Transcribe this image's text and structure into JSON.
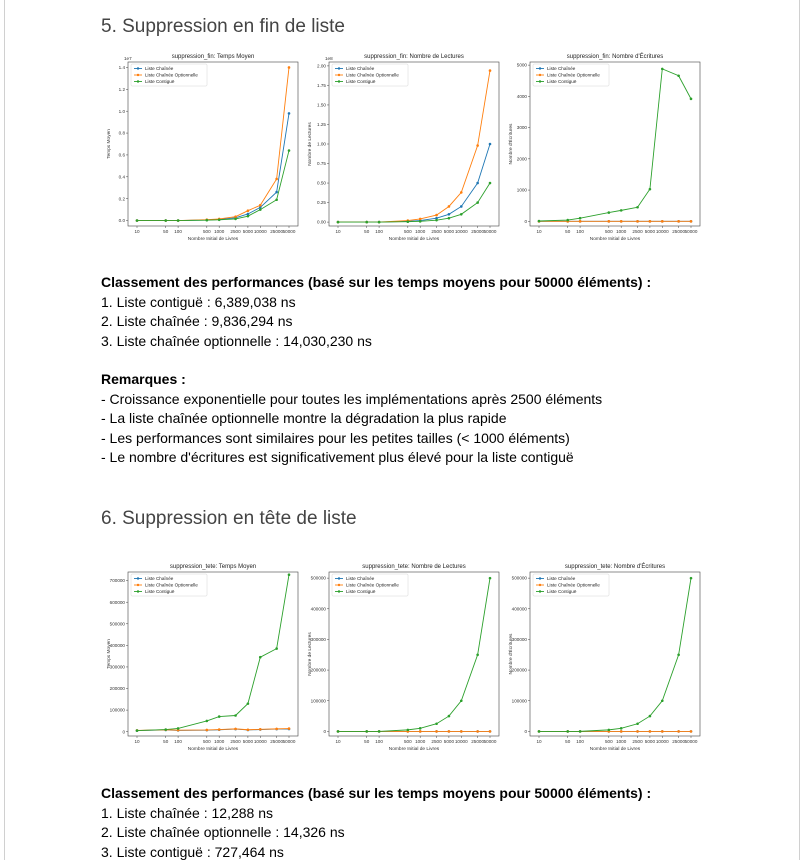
{
  "sections": [
    {
      "title": "5. Suppression en fin de liste",
      "ranking_title": "Classement des performances (basé sur les temps moyens pour 50000 éléments) :",
      "ranking": [
        "1. Liste contiguë : 6,389,038 ns",
        "2. Liste chaînée : 9,836,294 ns",
        "3. Liste chaînée optionnelle : 14,030,230 ns"
      ],
      "remarks_title": "Remarques :",
      "remarks": [
        "- Croissance exponentielle pour toutes les implémentations après 2500 éléments",
        "- La liste chaînée optionnelle montre la dégradation la plus rapide",
        "- Les performances sont similaires pour les petites tailles (< 1000 éléments)",
        "- Le nombre d'écritures est significativement plus élevé pour la liste contiguë"
      ]
    },
    {
      "title": "6. Suppression en tête de liste",
      "ranking_title": "Classement des performances (basé sur les temps moyens pour 50000 éléments) :",
      "ranking": [
        "1. Liste chaînée : 12,288 ns",
        "2. Liste chaînée optionnelle : 14,326 ns",
        "3. Liste contiguë : 727,464 ns"
      ]
    }
  ],
  "chart_data": [
    {
      "type": "line",
      "title": "suppression_fin: Temps Moyen",
      "xlabel": "Nombre Initial de Livres",
      "ylabel": "Temps Moyen",
      "y_multiplier_label": "1e7",
      "x": [
        "10",
        "50",
        "100",
        "500",
        "1000",
        "2500",
        "5000",
        "10000",
        "25000",
        "50000"
      ],
      "ylim": [
        -0.05,
        1.45
      ],
      "yticks": [
        "0.0",
        "0.2",
        "0.4",
        "0.6",
        "0.8",
        "1.0",
        "1.2",
        "1.4"
      ],
      "ytick_values": [
        0.0,
        0.2,
        0.4,
        0.6,
        0.8,
        1.0,
        1.2,
        1.4
      ],
      "legend": "top-left",
      "series": [
        {
          "name": "Liste Chaînée",
          "color": "#1f77b4",
          "values": [
            0,
            0,
            0,
            0.005,
            0.01,
            0.025,
            0.06,
            0.12,
            0.26,
            0.98
          ]
        },
        {
          "name": "Liste Chaînée Optionnelle",
          "color": "#ff7f0e",
          "values": [
            0,
            0,
            0,
            0.008,
            0.015,
            0.035,
            0.09,
            0.14,
            0.38,
            1.4
          ]
        },
        {
          "name": "Liste Contiguë",
          "color": "#2ca02c",
          "values": [
            0,
            0,
            0,
            0.003,
            0.007,
            0.015,
            0.04,
            0.1,
            0.19,
            0.64
          ]
        }
      ]
    },
    {
      "type": "line",
      "title": "suppression_fin: Nombre de Lectures",
      "xlabel": "Nombre Initial de Livres",
      "ylabel": "Nombre de Lectures",
      "y_multiplier_label": "1e8",
      "x": [
        "10",
        "50",
        "100",
        "500",
        "1000",
        "2500",
        "5000",
        "10000",
        "25000",
        "50000"
      ],
      "ylim": [
        -0.05,
        2.05
      ],
      "yticks": [
        "0.00",
        "0.25",
        "0.50",
        "0.75",
        "1.00",
        "1.25",
        "1.50",
        "1.75",
        "2.00"
      ],
      "ytick_values": [
        0,
        0.25,
        0.5,
        0.75,
        1.0,
        1.25,
        1.5,
        1.75,
        2.0
      ],
      "legend": "top-left",
      "series": [
        {
          "name": "Liste Chaînée",
          "color": "#1f77b4",
          "values": [
            0,
            0,
            0,
            0.01,
            0.02,
            0.05,
            0.1,
            0.2,
            0.5,
            1.0
          ]
        },
        {
          "name": "Liste Chaînée Optionnelle",
          "color": "#ff7f0e",
          "values": [
            0,
            0,
            0,
            0.02,
            0.04,
            0.09,
            0.2,
            0.38,
            0.98,
            1.94
          ]
        },
        {
          "name": "Liste Contiguë",
          "color": "#2ca02c",
          "values": [
            0,
            0,
            0,
            0.005,
            0.01,
            0.025,
            0.05,
            0.1,
            0.25,
            0.5
          ]
        }
      ]
    },
    {
      "type": "line",
      "title": "suppression_fin: Nombre d'Écritures",
      "xlabel": "Nombre Initial de Livres",
      "ylabel": "Nombre d'Écritures",
      "x": [
        "10",
        "50",
        "100",
        "500",
        "1000",
        "2500",
        "5000",
        "10000",
        "25000",
        "50000"
      ],
      "ylim": [
        -150,
        5100
      ],
      "yticks": [
        "0",
        "1000",
        "2000",
        "3000",
        "4000",
        "5000"
      ],
      "ytick_values": [
        0,
        1000,
        2000,
        3000,
        4000,
        5000
      ],
      "legend": "top-left",
      "series": [
        {
          "name": "Liste Chaînée",
          "color": "#1f77b4",
          "values": [
            0,
            0,
            0,
            0,
            0,
            0,
            0,
            0,
            0,
            0
          ]
        },
        {
          "name": "Liste Chaînée Optionnelle",
          "color": "#ff7f0e",
          "values": [
            0,
            0,
            0,
            0,
            0,
            0,
            0,
            0,
            0,
            0
          ]
        },
        {
          "name": "Liste Contiguë",
          "color": "#2ca02c",
          "values": [
            10,
            40,
            100,
            280,
            350,
            450,
            1030,
            4880,
            4660,
            3920
          ]
        }
      ]
    },
    {
      "type": "line",
      "title": "suppression_tete: Temps Moyen",
      "xlabel": "Nombre Initial de Livres",
      "ylabel": "Temps Moyen",
      "x": [
        "10",
        "50",
        "100",
        "500",
        "1000",
        "2500",
        "5000",
        "10000",
        "25000",
        "50000"
      ],
      "ylim": [
        -20000,
        740000
      ],
      "yticks": [
        "0",
        "100000",
        "200000",
        "300000",
        "400000",
        "500000",
        "600000",
        "700000"
      ],
      "ytick_values": [
        0,
        100000,
        200000,
        300000,
        400000,
        500000,
        600000,
        700000
      ],
      "legend": "top-left",
      "series": [
        {
          "name": "Liste Chaînée",
          "color": "#1f77b4",
          "values": [
            5000,
            8000,
            6000,
            7000,
            9000,
            12000,
            8000,
            10000,
            12000,
            12288
          ]
        },
        {
          "name": "Liste Chaînée Optionnelle",
          "color": "#ff7f0e",
          "values": [
            6000,
            9000,
            7000,
            8000,
            10000,
            13000,
            9000,
            11000,
            13000,
            14326
          ]
        },
        {
          "name": "Liste Contiguë",
          "color": "#2ca02c",
          "values": [
            5000,
            10000,
            15000,
            50000,
            70000,
            75000,
            130000,
            345000,
            385000,
            727464
          ]
        }
      ]
    },
    {
      "type": "line",
      "title": "suppression_tete: Nombre de Lectures",
      "xlabel": "Nombre Initial de Livres",
      "ylabel": "Nombre de Lectures",
      "x": [
        "10",
        "50",
        "100",
        "500",
        "1000",
        "2500",
        "5000",
        "10000",
        "25000",
        "50000"
      ],
      "ylim": [
        -15000,
        520000
      ],
      "yticks": [
        "0",
        "100000",
        "200000",
        "300000",
        "400000",
        "500000"
      ],
      "ytick_values": [
        0,
        100000,
        200000,
        300000,
        400000,
        500000
      ],
      "legend": "top-left",
      "series": [
        {
          "name": "Liste Chaînée",
          "color": "#1f77b4",
          "values": [
            0,
            0,
            0,
            0,
            0,
            0,
            0,
            0,
            0,
            0
          ]
        },
        {
          "name": "Liste Chaînée Optionnelle",
          "color": "#ff7f0e",
          "values": [
            0,
            0,
            0,
            0,
            0,
            0,
            0,
            0,
            0,
            0
          ]
        },
        {
          "name": "Liste Contiguë",
          "color": "#2ca02c",
          "values": [
            10,
            50,
            100,
            5000,
            10000,
            25000,
            50000,
            100000,
            250000,
            500000
          ]
        }
      ]
    },
    {
      "type": "line",
      "title": "suppression_tete: Nombre d'Écritures",
      "xlabel": "Nombre Initial de Livres",
      "ylabel": "Nombre d'Écritures",
      "x": [
        "10",
        "50",
        "100",
        "500",
        "1000",
        "2500",
        "5000",
        "10000",
        "25000",
        "50000"
      ],
      "ylim": [
        -15000,
        520000
      ],
      "yticks": [
        "0",
        "100000",
        "200000",
        "300000",
        "400000",
        "500000"
      ],
      "ytick_values": [
        0,
        100000,
        200000,
        300000,
        400000,
        500000
      ],
      "legend": "top-left",
      "series": [
        {
          "name": "Liste Chaînée",
          "color": "#1f77b4",
          "values": [
            0,
            0,
            0,
            0,
            0,
            0,
            0,
            0,
            0,
            0
          ]
        },
        {
          "name": "Liste Chaînée Optionnelle",
          "color": "#ff7f0e",
          "values": [
            0,
            0,
            0,
            0,
            0,
            0,
            0,
            0,
            0,
            0
          ]
        },
        {
          "name": "Liste Contiguë",
          "color": "#2ca02c",
          "values": [
            10,
            50,
            100,
            5000,
            10000,
            25000,
            50000,
            100000,
            250000,
            500000
          ]
        }
      ]
    }
  ]
}
